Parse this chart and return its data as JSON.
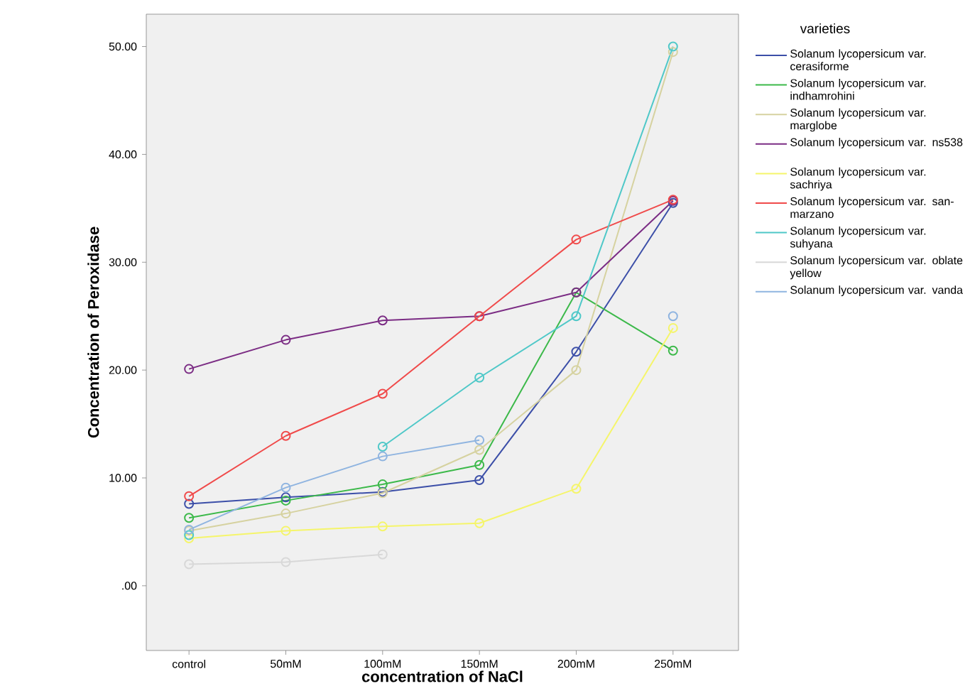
{
  "chart_data": {
    "type": "line",
    "xlabel": "concentration of NaCl",
    "ylabel": "Concentration of Peroxidase",
    "legend_title": "varieties",
    "categories": [
      "control",
      "50mM",
      "100mM",
      "150mM",
      "200mM",
      "250mM"
    ],
    "series": [
      {
        "name": "Solanum lycopersicum var. cerasiforme",
        "color": "#3c4fa8",
        "values": [
          7.6,
          8.2,
          8.7,
          9.8,
          21.7,
          35.5
        ]
      },
      {
        "name": "Solanum lycopersicum var. indhamrohini",
        "color": "#3cb94a",
        "values": [
          6.3,
          7.9,
          9.4,
          11.2,
          27.2,
          21.8
        ]
      },
      {
        "name": "Solanum lycopersicum var. marglobe",
        "color": "#d6d2a0",
        "values": [
          5.1,
          6.7,
          8.6,
          12.6,
          20.0,
          49.5
        ]
      },
      {
        "name": "Solanum lycopersicum var. ns538",
        "color": "#7b2c84",
        "values": [
          20.1,
          22.8,
          24.6,
          25.0,
          27.2,
          35.7
        ]
      },
      {
        "name": "Solanum lycopersicum var. sachriya",
        "color": "#f5f56a",
        "values": [
          4.4,
          5.1,
          5.5,
          5.8,
          9.0,
          23.9
        ]
      },
      {
        "name": "Solanum lycopersicum var. san-marzano",
        "color": "#f04a4a",
        "values": [
          8.3,
          13.9,
          17.8,
          25.0,
          32.1,
          35.8
        ]
      },
      {
        "name": "Solanum lycopersicum var. suhyana",
        "color": "#4fc8c8",
        "values": [
          4.7,
          null,
          12.9,
          19.3,
          25.0,
          50.0
        ]
      },
      {
        "name": "Solanum lycopersicum var. oblate yellow",
        "color": "#d8d8d8",
        "values": [
          2.0,
          2.2,
          2.9,
          null,
          null,
          null
        ]
      },
      {
        "name": "Solanum lycopersicum var. vanda",
        "color": "#8fb4e0",
        "values": [
          5.2,
          9.1,
          12.0,
          13.5,
          null,
          25.0
        ]
      }
    ],
    "ylim": [
      -6,
      53
    ],
    "yticks": [
      {
        "value": 0,
        "label": ".00"
      },
      {
        "value": 10,
        "label": "10.00"
      },
      {
        "value": 20,
        "label": "20.00"
      },
      {
        "value": 30,
        "label": "30.00"
      },
      {
        "value": 40,
        "label": "40.00"
      },
      {
        "value": 50,
        "label": "50.00"
      }
    ],
    "grid": false,
    "legend": "right",
    "marker": "circle",
    "line_style": "solid"
  }
}
